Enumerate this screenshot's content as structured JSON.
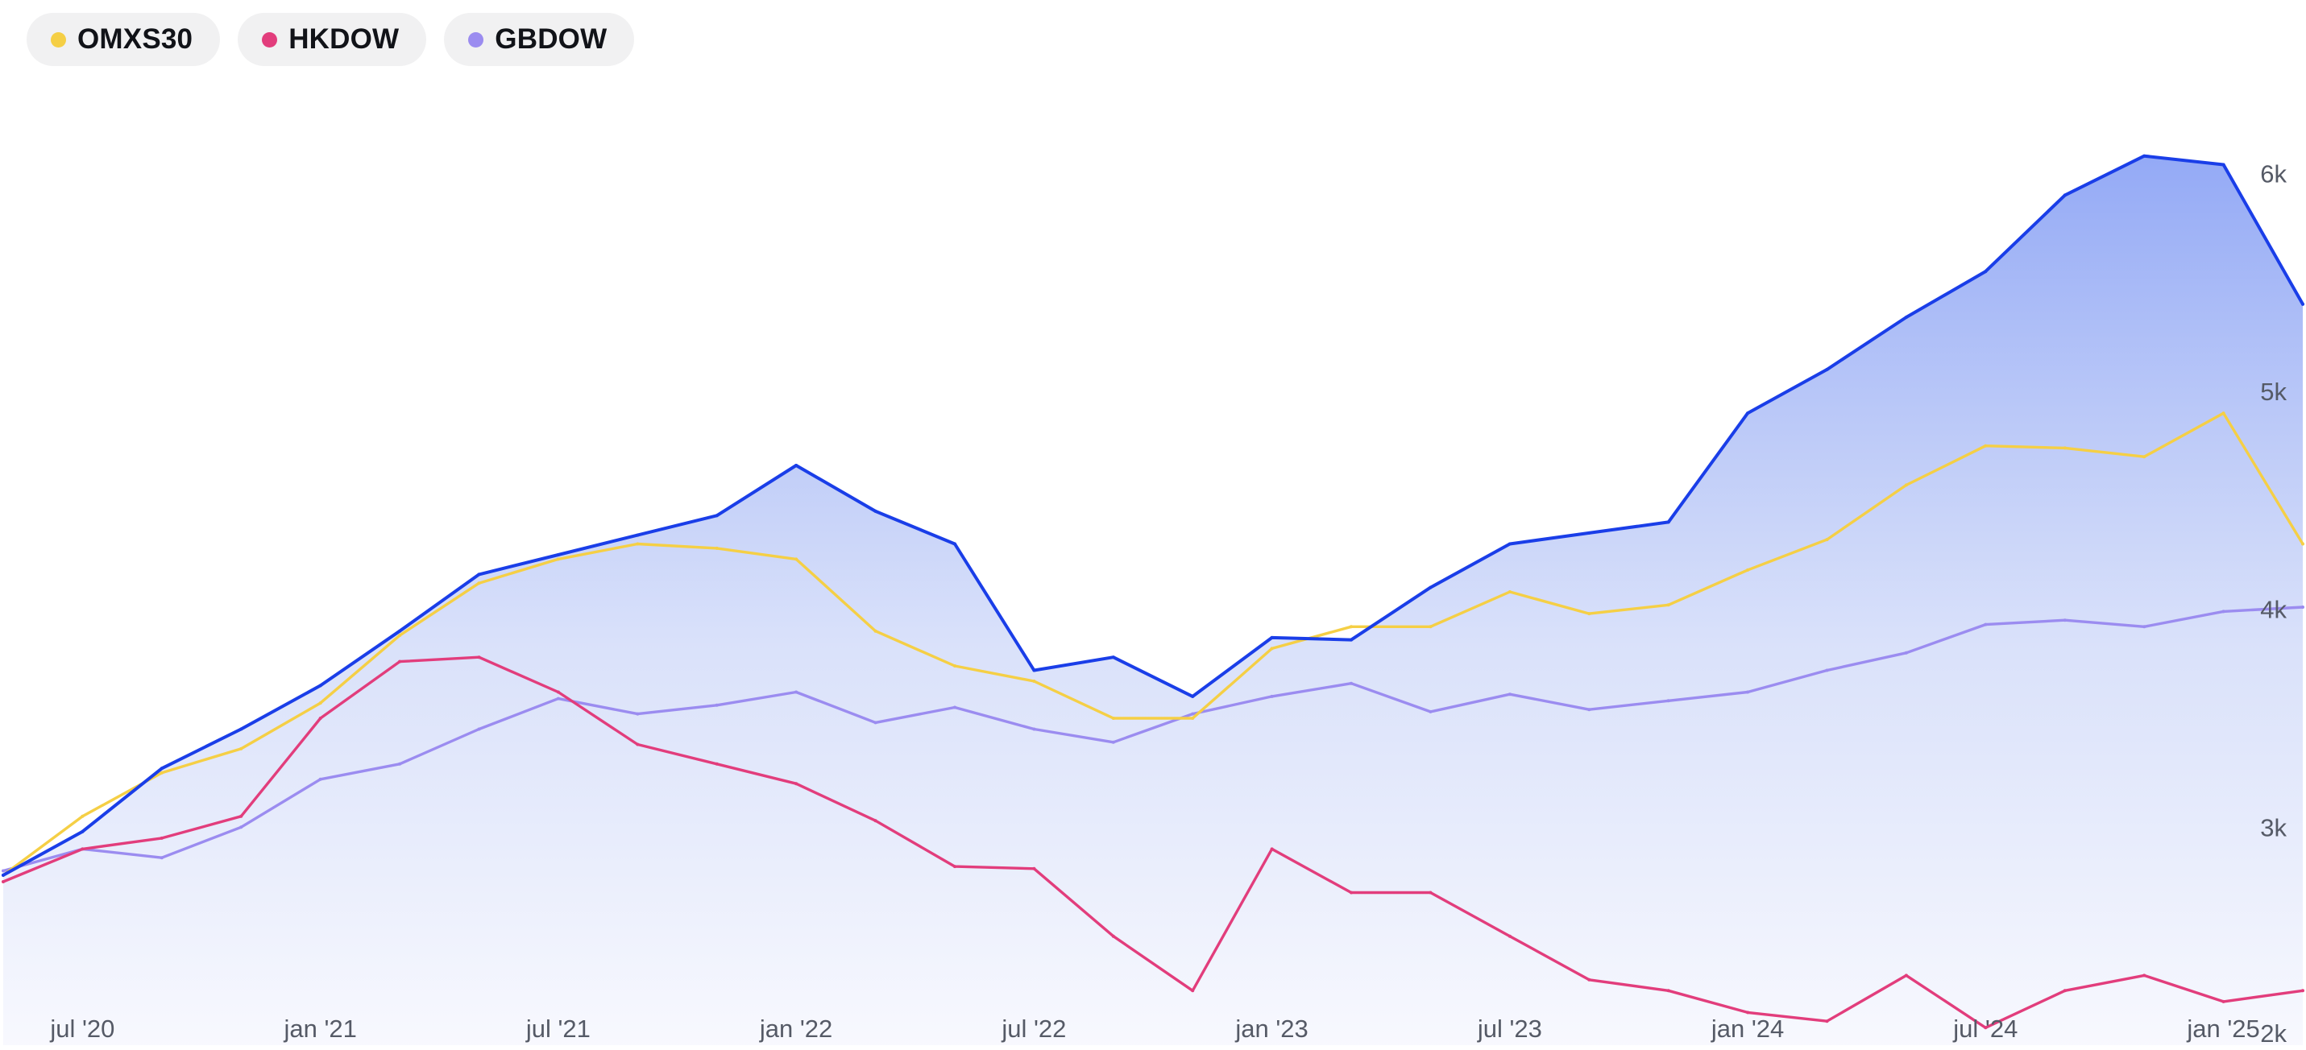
{
  "legend": [
    {
      "label": "OMXS30",
      "color": "#f5cf45"
    },
    {
      "label": "HKDOW",
      "color": "#e23d7c"
    },
    {
      "label": "GBDOW",
      "color": "#9b8cf0"
    }
  ],
  "chart_data": {
    "type": "line",
    "title": "",
    "xlabel": "",
    "ylabel": "",
    "ylim": [
      2000,
      6500
    ],
    "x_ticks": [
      "jul '20",
      "jan '21",
      "jul '21",
      "jan '22",
      "jul '22",
      "jan '23",
      "jul '23",
      "jan '24",
      "jul '24",
      "jan '25"
    ],
    "y_ticks": [
      {
        "value": 2000,
        "label": "2k"
      },
      {
        "value": 3000,
        "label": "3k"
      },
      {
        "value": 4000,
        "label": "4k"
      },
      {
        "value": 5000,
        "label": "5k"
      },
      {
        "value": 6000,
        "label": "6k"
      }
    ],
    "x": [
      "2020-05",
      "2020-07",
      "2020-09",
      "2020-11",
      "2021-01",
      "2021-03",
      "2021-05",
      "2021-07",
      "2021-09",
      "2021-11",
      "2022-01",
      "2022-03",
      "2022-05",
      "2022-07",
      "2022-09",
      "2022-11",
      "2023-01",
      "2023-03",
      "2023-05",
      "2023-07",
      "2023-09",
      "2023-11",
      "2024-01",
      "2024-03",
      "2024-05",
      "2024-07",
      "2024-09",
      "2024-11",
      "2025-01",
      "2025-03"
    ],
    "series": [
      {
        "name": "",
        "color": "#1a3ee8",
        "fill": true,
        "values": [
          2780,
          2980,
          3270,
          3450,
          3650,
          3900,
          4160,
          4250,
          4340,
          4430,
          4660,
          4450,
          4300,
          3720,
          3780,
          3600,
          3870,
          3860,
          4100,
          4300,
          4350,
          4400,
          4900,
          5100,
          5340,
          5550,
          5900,
          6080,
          6040,
          5400
        ]
      },
      {
        "name": "OMXS30",
        "color": "#f5cf45",
        "values": [
          2780,
          3050,
          3250,
          3360,
          3570,
          3880,
          4120,
          4230,
          4300,
          4280,
          4230,
          3900,
          3740,
          3670,
          3500,
          3500,
          3820,
          3920,
          3920,
          4080,
          3980,
          4020,
          4180,
          4320,
          4570,
          4750,
          4740,
          4700,
          4900,
          4300
        ]
      },
      {
        "name": "HKDOW",
        "color": "#e23d7c",
        "values": [
          2750,
          2900,
          2950,
          3050,
          3500,
          3760,
          3780,
          3620,
          3380,
          3290,
          3200,
          3030,
          2820,
          2810,
          2500,
          2250,
          2900,
          2700,
          2700,
          2500,
          2300,
          2250,
          2150,
          2110,
          2320,
          2080,
          2250,
          2320,
          2200,
          2250
        ]
      },
      {
        "name": "GBDOW",
        "color": "#9b8cf0",
        "values": [
          2800,
          2900,
          2860,
          3000,
          3220,
          3290,
          3450,
          3590,
          3520,
          3560,
          3620,
          3480,
          3550,
          3450,
          3390,
          3520,
          3600,
          3660,
          3530,
          3610,
          3540,
          3580,
          3620,
          3720,
          3800,
          3930,
          3950,
          3920,
          3990,
          4010
        ]
      }
    ]
  }
}
